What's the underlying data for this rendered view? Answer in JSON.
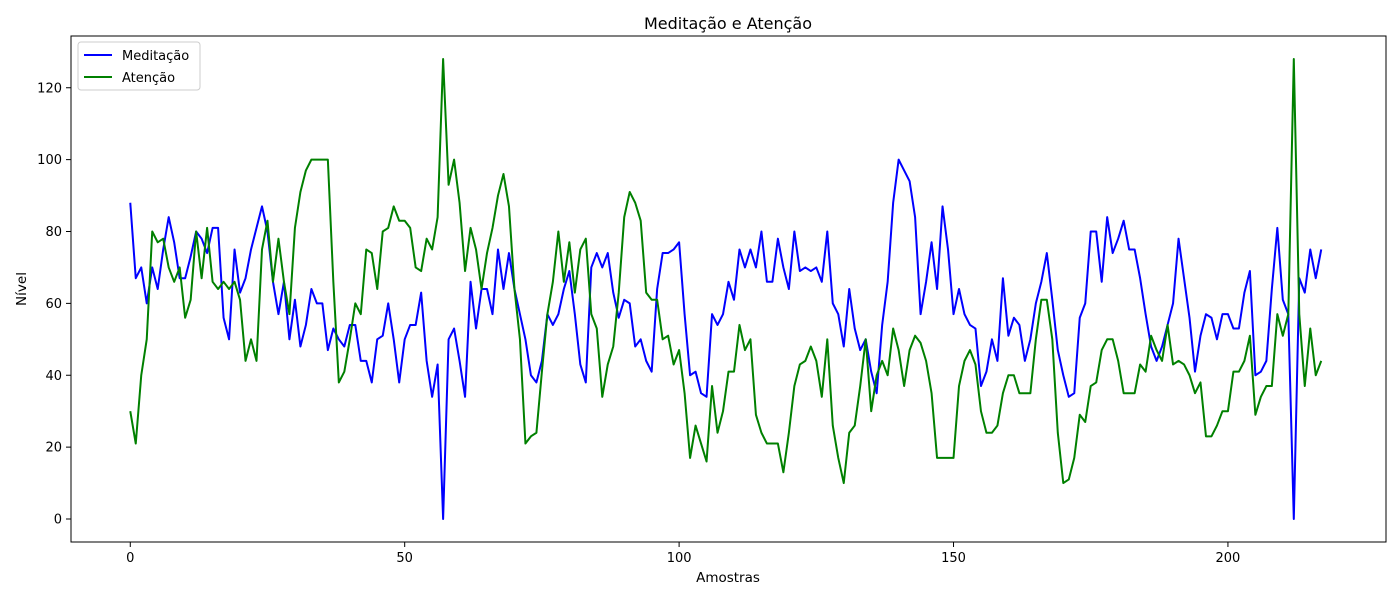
{
  "chart_data": {
    "type": "line",
    "title": "Meditação e Atenção",
    "xlabel": "Amostras",
    "ylabel": "Nível",
    "xlim": [
      -10.8,
      228.8
    ],
    "ylim": [
      -6.4,
      134.4
    ],
    "xticks": [
      0,
      50,
      100,
      150,
      200
    ],
    "yticks": [
      0,
      20,
      40,
      60,
      80,
      100,
      120
    ],
    "grid": false,
    "legend_position": "top-left",
    "series": [
      {
        "name": "Meditação",
        "color": "#0000ff",
        "values": [
          88,
          67,
          70,
          60,
          70,
          64,
          75,
          84,
          77,
          67,
          67,
          73,
          80,
          78,
          74,
          81,
          81,
          56,
          50,
          75,
          63,
          67,
          75,
          81,
          87,
          80,
          66,
          57,
          66,
          50,
          61,
          48,
          54,
          64,
          60,
          60,
          47,
          53,
          50,
          48,
          54,
          54,
          44,
          44,
          38,
          50,
          51,
          60,
          50,
          38,
          50,
          54,
          54,
          63,
          44,
          34,
          43,
          0,
          50,
          53,
          44,
          34,
          66,
          53,
          64,
          64,
          57,
          75,
          64,
          74,
          64,
          57,
          50,
          40,
          38,
          44,
          57,
          54,
          57,
          64,
          69,
          57,
          43,
          38,
          70,
          74,
          70,
          74,
          63,
          56,
          61,
          60,
          48,
          50,
          44,
          41,
          64,
          74,
          74,
          75,
          77,
          57,
          40,
          41,
          35,
          34,
          57,
          54,
          57,
          66,
          61,
          75,
          70,
          75,
          70,
          80,
          66,
          66,
          78,
          70,
          64,
          80,
          69,
          70,
          69,
          70,
          66,
          80,
          60,
          57,
          48,
          64,
          53,
          47,
          50,
          41,
          35,
          54,
          66,
          88,
          100,
          97,
          94,
          84,
          57,
          66,
          77,
          64,
          87,
          75,
          57,
          64,
          57,
          54,
          53,
          37,
          41,
          50,
          44,
          67,
          51,
          56,
          54,
          44,
          50,
          60,
          66,
          74,
          61,
          47,
          40,
          34,
          35,
          56,
          60,
          80,
          80,
          66,
          84,
          74,
          78,
          83,
          75,
          75,
          67,
          57,
          48,
          44,
          48,
          54,
          60,
          78,
          67,
          56,
          41,
          51,
          57,
          56,
          50,
          57,
          57,
          53,
          53,
          63,
          69,
          40,
          41,
          44,
          64,
          81,
          61,
          57,
          0,
          67,
          63,
          75,
          67,
          75
        ]
      },
      {
        "name": "Atenção",
        "color": "#008000",
        "values": [
          30,
          21,
          40,
          50,
          80,
          77,
          78,
          70,
          66,
          70,
          56,
          61,
          80,
          67,
          81,
          66,
          64,
          66,
          64,
          66,
          61,
          44,
          50,
          44,
          75,
          83,
          66,
          78,
          66,
          57,
          81,
          91,
          97,
          100,
          100,
          100,
          100,
          66,
          38,
          41,
          50,
          60,
          57,
          75,
          74,
          64,
          80,
          81,
          87,
          83,
          83,
          81,
          70,
          69,
          78,
          75,
          84,
          128,
          93,
          100,
          88,
          69,
          81,
          75,
          64,
          74,
          81,
          90,
          96,
          87,
          64,
          50,
          21,
          23,
          24,
          41,
          57,
          66,
          80,
          66,
          77,
          63,
          75,
          78,
          57,
          53,
          34,
          43,
          48,
          63,
          84,
          91,
          88,
          83,
          63,
          61,
          61,
          50,
          51,
          43,
          47,
          35,
          17,
          26,
          21,
          16,
          37,
          24,
          30,
          41,
          41,
          54,
          47,
          50,
          29,
          24,
          21,
          21,
          21,
          13,
          24,
          37,
          43,
          44,
          48,
          44,
          34,
          50,
          26,
          17,
          10,
          24,
          26,
          37,
          50,
          30,
          40,
          44,
          40,
          53,
          47,
          37,
          47,
          51,
          49,
          44,
          35,
          17,
          17,
          17,
          17,
          37,
          44,
          47,
          43,
          30,
          24,
          24,
          26,
          35,
          40,
          40,
          35,
          35,
          35,
          50,
          61,
          61,
          50,
          24,
          10,
          11,
          17,
          29,
          27,
          37,
          38,
          47,
          50,
          50,
          44,
          35,
          35,
          35,
          43,
          41,
          51,
          47,
          44,
          54,
          43,
          44,
          43,
          40,
          35,
          38,
          23,
          23,
          26,
          30,
          30,
          41,
          41,
          44,
          51,
          29,
          34,
          37,
          37,
          57,
          51,
          57,
          128,
          57,
          37,
          53,
          40,
          44
        ]
      }
    ]
  }
}
